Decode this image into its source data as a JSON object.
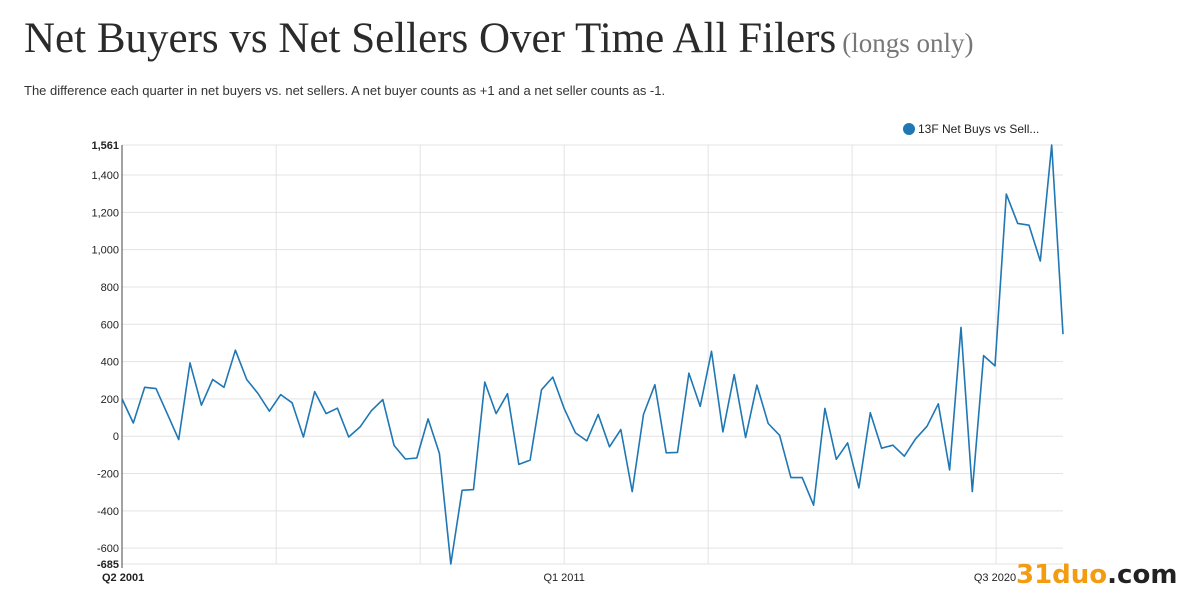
{
  "header": {
    "title": "Net Buyers vs Net Sellers Over Time All Filers",
    "subtitle": "(longs only)",
    "description": "The difference each quarter in net buyers vs. net sellers. A net buyer counts as +1 and a net seller counts as -1."
  },
  "watermark": {
    "text_a": "31duo",
    "text_b": ".com"
  },
  "chart_data": {
    "type": "line",
    "title": "Net Buyers vs Net Sellers Over Time All Filers",
    "legend_position": "top-right",
    "grid": true,
    "color": "#1f77b4",
    "ylim": [
      -685,
      1561
    ],
    "y_ticks": [
      {
        "v": 1561,
        "label": "1,561",
        "bold": true
      },
      {
        "v": 1400,
        "label": "1,400"
      },
      {
        "v": 1200,
        "label": "1,200"
      },
      {
        "v": 1000,
        "label": "1,000"
      },
      {
        "v": 800,
        "label": "800"
      },
      {
        "v": 600,
        "label": "600"
      },
      {
        "v": 400,
        "label": "400"
      },
      {
        "v": 200,
        "label": "200"
      },
      {
        "v": 0,
        "label": "0"
      },
      {
        "v": -200,
        "label": "-200"
      },
      {
        "v": -400,
        "label": "-400"
      },
      {
        "v": -600,
        "label": "-600"
      },
      {
        "v": -685,
        "label": "-685",
        "bold": true
      }
    ],
    "x_ticks": [
      {
        "index": 0,
        "label": "Q2 2001",
        "bold": true
      },
      {
        "index": 39,
        "label": "Q1 2011"
      },
      {
        "index": 77,
        "label": "Q3 2020"
      }
    ],
    "x_start": "Q2 2001",
    "x_end": "Q1 2022",
    "series": [
      {
        "name": "13F Net Buys vs Sell...",
        "values": [
          200,
          71,
          262,
          255,
          120,
          -18,
          393,
          166,
          304,
          262,
          461,
          304,
          229,
          134,
          223,
          179,
          -4,
          239,
          121,
          150,
          -4,
          50,
          137,
          196,
          -50,
          -122,
          -117,
          93,
          -92,
          -685,
          -290,
          -286,
          290,
          121,
          228,
          -151,
          -128,
          249,
          317,
          148,
          18,
          -25,
          117,
          -57,
          36,
          -297,
          117,
          276,
          -89,
          -87,
          338,
          160,
          455,
          23,
          331,
          -7,
          274,
          68,
          5,
          -222,
          -222,
          -370,
          149,
          -124,
          -36,
          -277,
          126,
          -64,
          -48,
          -107,
          -14,
          53,
          174,
          -181,
          583,
          -297,
          432,
          377,
          1298,
          1141,
          1131,
          939,
          1561,
          547
        ]
      }
    ]
  }
}
